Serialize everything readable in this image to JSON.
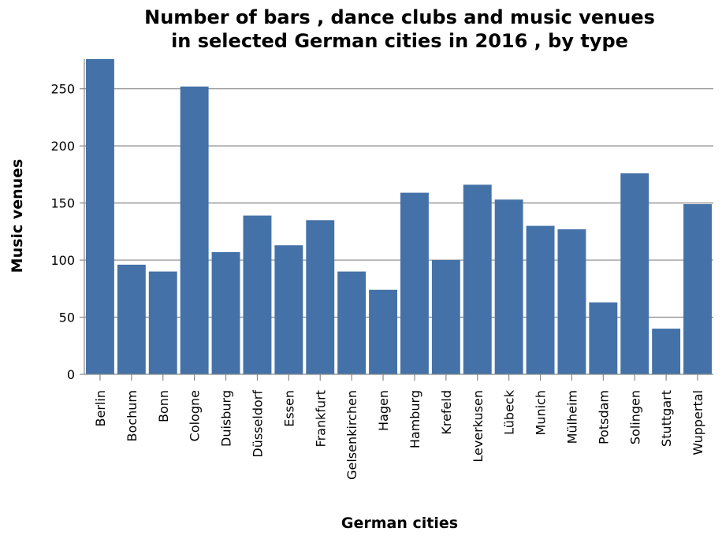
{
  "chart_data": {
    "type": "bar",
    "title": "Number of bars , dance clubs and music venues in selected German cities in 2016 , by type",
    "title_lines": [
      "Number of bars , dance clubs and music venues",
      "in selected German cities in 2016 , by type"
    ],
    "xlabel": "German cities",
    "ylabel": "Music venues",
    "ylim": [
      0,
      276
    ],
    "yticks": [
      0,
      50,
      100,
      150,
      200,
      250
    ],
    "grid": true,
    "bar_color": "#4472a8",
    "categories": [
      "Berlin",
      "Bochum",
      "Bonn",
      "Cologne",
      "Duisburg",
      "Düsseldorf",
      "Essen",
      "Frankfurt",
      "Gelsenkirchen",
      "Hagen",
      "Hamburg",
      "Krefeld",
      "Leverkusen",
      "Lübeck",
      "Munich",
      "Mülheim",
      "Potsdam",
      "Solingen",
      "Stuttgart",
      "Wuppertal"
    ],
    "values": [
      276,
      96,
      90,
      252,
      107,
      139,
      113,
      135,
      90,
      74,
      159,
      100,
      166,
      153,
      130,
      127,
      63,
      176,
      40,
      149
    ]
  }
}
